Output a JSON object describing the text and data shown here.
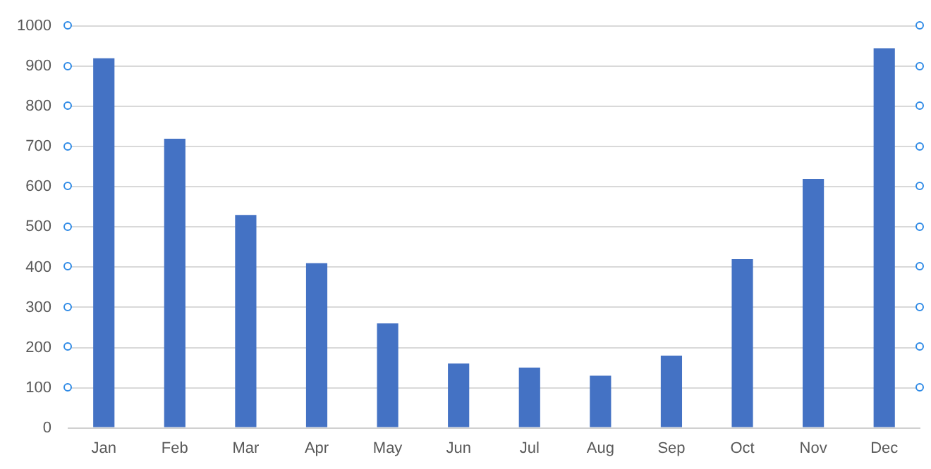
{
  "chart_data": {
    "type": "bar",
    "categories": [
      "Jan",
      "Feb",
      "Mar",
      "Apr",
      "May",
      "Jun",
      "Jul",
      "Aug",
      "Sep",
      "Oct",
      "Nov",
      "Dec"
    ],
    "values": [
      920,
      720,
      530,
      410,
      260,
      160,
      150,
      130,
      180,
      420,
      620,
      945
    ],
    "color": "#4472c4",
    "ylim": [
      0,
      1000
    ],
    "yticks": [
      0,
      100,
      200,
      300,
      400,
      500,
      600,
      700,
      800,
      900,
      1000
    ],
    "grid": "y",
    "legend": false
  }
}
